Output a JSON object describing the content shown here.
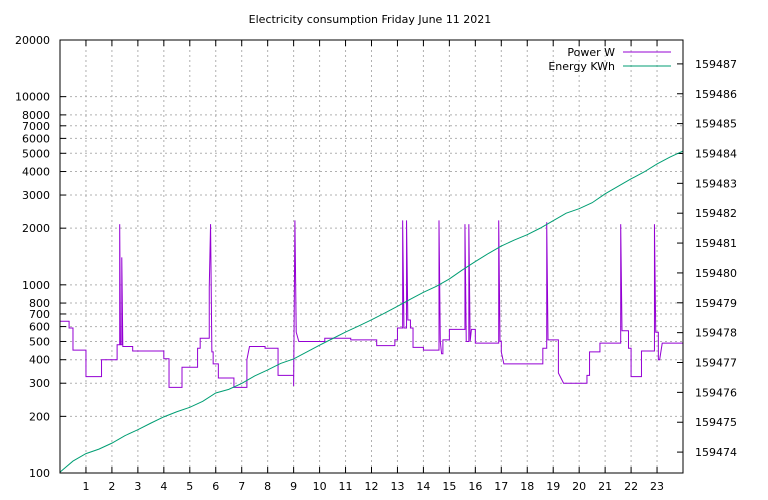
{
  "chart_data": {
    "type": "line",
    "title": "Electricity consumption Friday June 11 2021",
    "x": {
      "range": [
        0,
        24
      ],
      "ticks": [
        1,
        2,
        3,
        4,
        5,
        6,
        7,
        8,
        9,
        10,
        11,
        12,
        13,
        14,
        15,
        16,
        17,
        18,
        19,
        20,
        21,
        22,
        23
      ]
    },
    "y_left": {
      "scale": "log",
      "range": [
        100,
        20000
      ],
      "ticks": [
        100,
        200,
        300,
        400,
        500,
        600,
        700,
        800,
        1000,
        2000,
        3000,
        4000,
        5000,
        6000,
        7000,
        8000,
        10000,
        20000
      ]
    },
    "y_right": {
      "scale": "linear",
      "range": [
        159473.3,
        159487.8
      ],
      "ticks": [
        159474,
        159475,
        159476,
        159477,
        159478,
        159479,
        159480,
        159481,
        159482,
        159483,
        159484,
        159485,
        159486,
        159487
      ]
    },
    "grid": true,
    "legend_position": "top-right",
    "series": [
      {
        "name": "Power W",
        "axis": "left",
        "color": "#9400d3",
        "points": [
          [
            0,
            640
          ],
          [
            0.35,
            640
          ],
          [
            0.35,
            590
          ],
          [
            0.5,
            590
          ],
          [
            0.5,
            450
          ],
          [
            1.0,
            450
          ],
          [
            1.0,
            325
          ],
          [
            1.6,
            325
          ],
          [
            1.6,
            400
          ],
          [
            2.2,
            400
          ],
          [
            2.2,
            480
          ],
          [
            2.3,
            480
          ],
          [
            2.3,
            2100
          ],
          [
            2.33,
            480
          ],
          [
            2.38,
            480
          ],
          [
            2.38,
            1400
          ],
          [
            2.42,
            470
          ],
          [
            2.8,
            470
          ],
          [
            2.8,
            445
          ],
          [
            4.0,
            445
          ],
          [
            4.0,
            405
          ],
          [
            4.2,
            405
          ],
          [
            4.2,
            285
          ],
          [
            4.7,
            285
          ],
          [
            4.7,
            365
          ],
          [
            5.3,
            365
          ],
          [
            5.3,
            460
          ],
          [
            5.4,
            460
          ],
          [
            5.4,
            520
          ],
          [
            5.75,
            520
          ],
          [
            5.75,
            970
          ],
          [
            5.8,
            2100
          ],
          [
            5.85,
            440
          ],
          [
            5.9,
            440
          ],
          [
            5.9,
            380
          ],
          [
            6.1,
            380
          ],
          [
            6.1,
            320
          ],
          [
            6.7,
            320
          ],
          [
            6.7,
            285
          ],
          [
            7.2,
            285
          ],
          [
            7.2,
            400
          ],
          [
            7.3,
            470
          ],
          [
            7.9,
            470
          ],
          [
            7.9,
            460
          ],
          [
            8.4,
            460
          ],
          [
            8.4,
            330
          ],
          [
            9.0,
            330
          ],
          [
            9.0,
            290
          ],
          [
            9.05,
            2200
          ],
          [
            9.1,
            560
          ],
          [
            9.2,
            500
          ],
          [
            10.2,
            500
          ],
          [
            10.2,
            520
          ],
          [
            11.2,
            520
          ],
          [
            11.2,
            510
          ],
          [
            12.2,
            510
          ],
          [
            12.2,
            475
          ],
          [
            12.9,
            475
          ],
          [
            12.9,
            510
          ],
          [
            13.0,
            510
          ],
          [
            13.0,
            590
          ],
          [
            13.2,
            590
          ],
          [
            13.2,
            2200
          ],
          [
            13.25,
            590
          ],
          [
            13.35,
            590
          ],
          [
            13.35,
            2200
          ],
          [
            13.4,
            650
          ],
          [
            13.5,
            650
          ],
          [
            13.5,
            590
          ],
          [
            13.6,
            590
          ],
          [
            13.6,
            465
          ],
          [
            14.0,
            465
          ],
          [
            14.0,
            450
          ],
          [
            14.6,
            450
          ],
          [
            14.6,
            2200
          ],
          [
            14.65,
            500
          ],
          [
            14.7,
            430
          ],
          [
            14.75,
            430
          ],
          [
            14.75,
            510
          ],
          [
            15.0,
            510
          ],
          [
            15.0,
            580
          ],
          [
            15.6,
            580
          ],
          [
            15.6,
            2100
          ],
          [
            15.65,
            500
          ],
          [
            15.75,
            500
          ],
          [
            15.75,
            2100
          ],
          [
            15.8,
            500
          ],
          [
            15.85,
            580
          ],
          [
            16.0,
            580
          ],
          [
            16.0,
            490
          ],
          [
            16.9,
            490
          ],
          [
            16.9,
            2200
          ],
          [
            16.95,
            500
          ],
          [
            17.0,
            500
          ],
          [
            17.0,
            440
          ],
          [
            17.1,
            380
          ],
          [
            18.6,
            380
          ],
          [
            18.6,
            460
          ],
          [
            18.75,
            460
          ],
          [
            18.75,
            2150
          ],
          [
            18.8,
            510
          ],
          [
            19.2,
            510
          ],
          [
            19.2,
            340
          ],
          [
            19.4,
            300
          ],
          [
            20.3,
            300
          ],
          [
            20.3,
            330
          ],
          [
            20.4,
            330
          ],
          [
            20.4,
            440
          ],
          [
            20.8,
            440
          ],
          [
            20.8,
            490
          ],
          [
            21.6,
            490
          ],
          [
            21.6,
            2100
          ],
          [
            21.65,
            570
          ],
          [
            21.9,
            570
          ],
          [
            21.9,
            460
          ],
          [
            22.0,
            460
          ],
          [
            22.0,
            325
          ],
          [
            22.4,
            325
          ],
          [
            22.4,
            445
          ],
          [
            22.9,
            445
          ],
          [
            22.9,
            2100
          ],
          [
            22.95,
            560
          ],
          [
            23.05,
            560
          ],
          [
            23.05,
            400
          ],
          [
            23.1,
            400
          ],
          [
            23.2,
            490
          ],
          [
            24.0,
            490
          ]
        ]
      },
      {
        "name": "Energy KWh",
        "axis": "right",
        "color": "#009e73",
        "points": [
          [
            0,
            159473.33
          ],
          [
            0.5,
            159473.7
          ],
          [
            1,
            159473.95
          ],
          [
            1.5,
            159474.1
          ],
          [
            2,
            159474.3
          ],
          [
            2.5,
            159474.55
          ],
          [
            3,
            159474.75
          ],
          [
            3.5,
            159474.97
          ],
          [
            4,
            159475.18
          ],
          [
            4.5,
            159475.35
          ],
          [
            5,
            159475.5
          ],
          [
            5.5,
            159475.7
          ],
          [
            6,
            159475.98
          ],
          [
            6.5,
            159476.1
          ],
          [
            7,
            159476.3
          ],
          [
            7.5,
            159476.55
          ],
          [
            8,
            159476.75
          ],
          [
            8.5,
            159476.97
          ],
          [
            9,
            159477.12
          ],
          [
            9.5,
            159477.35
          ],
          [
            10,
            159477.58
          ],
          [
            10.5,
            159477.8
          ],
          [
            11,
            159478.02
          ],
          [
            11.5,
            159478.22
          ],
          [
            12,
            159478.43
          ],
          [
            12.5,
            159478.65
          ],
          [
            13,
            159478.88
          ],
          [
            13.5,
            159479.12
          ],
          [
            14,
            159479.35
          ],
          [
            14.5,
            159479.55
          ],
          [
            15,
            159479.8
          ],
          [
            15.5,
            159480.1
          ],
          [
            16,
            159480.38
          ],
          [
            16.5,
            159480.65
          ],
          [
            17,
            159480.9
          ],
          [
            17.5,
            159481.1
          ],
          [
            18,
            159481.28
          ],
          [
            18.5,
            159481.5
          ],
          [
            19,
            159481.75
          ],
          [
            19.5,
            159482.0
          ],
          [
            20,
            159482.15
          ],
          [
            20.5,
            159482.35
          ],
          [
            21,
            159482.65
          ],
          [
            21.5,
            159482.9
          ],
          [
            22,
            159483.15
          ],
          [
            22.5,
            159483.38
          ],
          [
            23,
            159483.65
          ],
          [
            23.5,
            159483.88
          ],
          [
            24,
            159484.08
          ]
        ]
      }
    ]
  }
}
